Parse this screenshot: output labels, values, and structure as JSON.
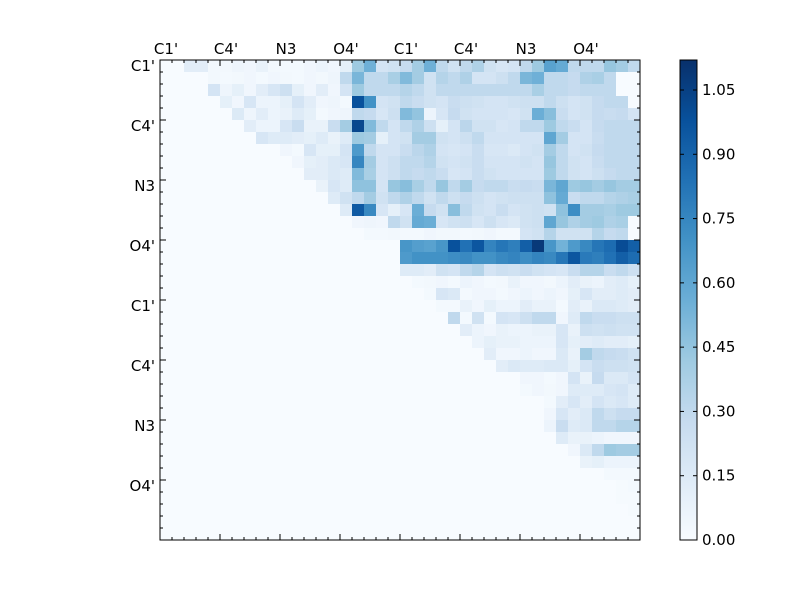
{
  "chart_data": {
    "type": "heatmap",
    "title": "",
    "n": 40,
    "x_tick_labels": [
      "C1'",
      "C4'",
      "N3",
      "O4'",
      "C1'",
      "C4'",
      "N3",
      "O4'"
    ],
    "y_tick_labels": [
      "C1'",
      "C4'",
      "N3",
      "O4'",
      "C1'",
      "C4'",
      "N3",
      "O4'"
    ],
    "label_index_start": 0,
    "label_index_step": 5,
    "value_range": [
      0.0,
      1.12
    ],
    "colormap": "Blues",
    "colorbar_ticks": [
      "0.00",
      "0.15",
      "0.30",
      "0.45",
      "0.60",
      "0.75",
      "0.90",
      "1.05"
    ],
    "matrix_note": "upper-triangular; rows listed as [row, startCol, values...]",
    "rows": [
      [
        0,
        2,
        0.12,
        0.12,
        0.03,
        0.03,
        0.05,
        0.04,
        0.08,
        0.03,
        0.02,
        0.02,
        0.04,
        0.06,
        0.04,
        0.1,
        0.42,
        0.55,
        0.2,
        0.22,
        0.28,
        0.4,
        0.55,
        0.3,
        0.22,
        0.3,
        0.36,
        0.22,
        0.18,
        0.2,
        0.3,
        0.42,
        0.62,
        0.58,
        0.3,
        0.3,
        0.3,
        0.44,
        0.4,
        0.3
      ],
      [
        1,
        4,
        0.03,
        0.02,
        0.03,
        0.04,
        0.02,
        0.04,
        0.03,
        0.02,
        0.04,
        0.03,
        0.05,
        0.3,
        0.52,
        0.3,
        0.3,
        0.38,
        0.5,
        0.4,
        0.22,
        0.34,
        0.3,
        0.36,
        0.2,
        0.2,
        0.24,
        0.3,
        0.52,
        0.55,
        0.3,
        0.3,
        0.28,
        0.36,
        0.38,
        0.3
      ],
      [
        2,
        4,
        0.2,
        0.05,
        0.1,
        0.04,
        0.12,
        0.18,
        0.24,
        0.1,
        0.04,
        0.12,
        0.04,
        0.2,
        0.42,
        0.3,
        0.3,
        0.3,
        0.34,
        0.3,
        0.22,
        0.3,
        0.3,
        0.3,
        0.3,
        0.3,
        0.3,
        0.3,
        0.3,
        0.38,
        0.3,
        0.3,
        0.28,
        0.3,
        0.3,
        0.3
      ],
      [
        3,
        5,
        0.1,
        0.04,
        0.18,
        0.06,
        0.06,
        0.1,
        0.2,
        0.12,
        0.04,
        0.05,
        0.02,
        0.98,
        0.7,
        0.2,
        0.22,
        0.3,
        0.26,
        0.22,
        0.2,
        0.26,
        0.24,
        0.22,
        0.2,
        0.2,
        0.22,
        0.24,
        0.24,
        0.3,
        0.24,
        0.2,
        0.22,
        0.28,
        0.3,
        0.3
      ],
      [
        4,
        6,
        0.15,
        0.05,
        0.12,
        0.06,
        0.08,
        0.14,
        0.1,
        0.02,
        0.04,
        0.05,
        0.3,
        0.28,
        0.18,
        0.24,
        0.5,
        0.45,
        0.06,
        0.18,
        0.28,
        0.22,
        0.2,
        0.2,
        0.2,
        0.18,
        0.22,
        0.56,
        0.48,
        0.26,
        0.2,
        0.22,
        0.28,
        0.26,
        0.28,
        0.2
      ],
      [
        5,
        7,
        0.12,
        0.06,
        0.06,
        0.18,
        0.26,
        0.08,
        0.08,
        0.26,
        0.4,
        1.02,
        0.5,
        0.3,
        0.2,
        0.3,
        0.36,
        0.24,
        0.1,
        0.2,
        0.32,
        0.22,
        0.22,
        0.18,
        0.2,
        0.3,
        0.3,
        0.42,
        0.3,
        0.26,
        0.2,
        0.28,
        0.3,
        0.3,
        0.3
      ],
      [
        6,
        8,
        0.18,
        0.14,
        0.14,
        0.12,
        0.1,
        0.14,
        0.08,
        0.14,
        0.42,
        0.4,
        0.1,
        0.2,
        0.22,
        0.4,
        0.4,
        0.22,
        0.2,
        0.24,
        0.3,
        0.2,
        0.2,
        0.2,
        0.2,
        0.2,
        0.6,
        0.4,
        0.2,
        0.2,
        0.26,
        0.3,
        0.3,
        0.3
      ],
      [
        7,
        10,
        0.04,
        0.02,
        0.18,
        0.1,
        0.1,
        0.2,
        0.66,
        0.3,
        0.2,
        0.2,
        0.26,
        0.32,
        0.36,
        0.2,
        0.18,
        0.2,
        0.26,
        0.18,
        0.18,
        0.16,
        0.2,
        0.22,
        0.4,
        0.3,
        0.2,
        0.22,
        0.28,
        0.3,
        0.3,
        0.3
      ],
      [
        8,
        11,
        0.04,
        0.1,
        0.12,
        0.16,
        0.18,
        0.75,
        0.4,
        0.2,
        0.24,
        0.3,
        0.3,
        0.34,
        0.22,
        0.2,
        0.22,
        0.26,
        0.2,
        0.2,
        0.2,
        0.22,
        0.2,
        0.44,
        0.3,
        0.22,
        0.2,
        0.26,
        0.3,
        0.3,
        0.3
      ],
      [
        9,
        12,
        0.12,
        0.12,
        0.16,
        0.14,
        0.5,
        0.38,
        0.2,
        0.24,
        0.3,
        0.28,
        0.3,
        0.26,
        0.18,
        0.2,
        0.26,
        0.22,
        0.2,
        0.2,
        0.2,
        0.2,
        0.42,
        0.3,
        0.22,
        0.2,
        0.24,
        0.28,
        0.3,
        0.3
      ],
      [
        10,
        13,
        0.08,
        0.18,
        0.14,
        0.46,
        0.46,
        0.2,
        0.44,
        0.48,
        0.38,
        0.3,
        0.44,
        0.3,
        0.4,
        0.28,
        0.3,
        0.3,
        0.26,
        0.28,
        0.26,
        0.52,
        0.6,
        0.42,
        0.44,
        0.4,
        0.44,
        0.4,
        0.4
      ],
      [
        11,
        14,
        0.14,
        0.22,
        0.3,
        0.4,
        0.22,
        0.3,
        0.36,
        0.3,
        0.22,
        0.3,
        0.24,
        0.28,
        0.24,
        0.2,
        0.22,
        0.24,
        0.24,
        0.24,
        0.46,
        0.58,
        0.26,
        0.3,
        0.3,
        0.34,
        0.36,
        0.38
      ],
      [
        12,
        15,
        0.14,
        0.94,
        0.74,
        0.18,
        0.1,
        0.18,
        0.56,
        0.28,
        0.22,
        0.48,
        0.3,
        0.22,
        0.2,
        0.26,
        0.2,
        0.22,
        0.24,
        0.22,
        0.46,
        0.72,
        0.4,
        0.4,
        0.38,
        0.42,
        0.42
      ],
      [
        13,
        16,
        0.04,
        0.05,
        0.04,
        0.3,
        0.22,
        0.58,
        0.56,
        0.18,
        0.22,
        0.24,
        0.18,
        0.24,
        0.18,
        0.16,
        0.22,
        0.24,
        0.6,
        0.44,
        0.36,
        0.4,
        0.42,
        0.36,
        0.38
      ],
      [
        14,
        17,
        0.02,
        0.02,
        0.03,
        0.02,
        0.02,
        0.04,
        0.03,
        0.03,
        0.02,
        0.03,
        0.04,
        0.02,
        0.02,
        0.2,
        0.22,
        0.34,
        0.22,
        0.22,
        0.22,
        0.34,
        0.28,
        0.3
      ],
      [
        15,
        20,
        0.68,
        0.64,
        0.62,
        0.68,
        0.98,
        0.84,
        0.96,
        0.76,
        0.82,
        0.78,
        0.92,
        1.08,
        0.68,
        0.54,
        0.66,
        0.74,
        0.82,
        0.86,
        1.0,
        0.92
      ],
      [
        16,
        20,
        0.66,
        0.7,
        0.7,
        0.7,
        0.72,
        0.74,
        0.7,
        0.7,
        0.74,
        0.76,
        0.72,
        0.76,
        0.74,
        0.82,
        0.96,
        0.8,
        0.78,
        0.84,
        0.92,
        0.86
      ],
      [
        17,
        20,
        0.14,
        0.14,
        0.12,
        0.22,
        0.2,
        0.3,
        0.34,
        0.2,
        0.24,
        0.22,
        0.26,
        0.22,
        0.2,
        0.18,
        0.26,
        0.34,
        0.34,
        0.26,
        0.3,
        0.24
      ],
      [
        18,
        21,
        0.02,
        0.03,
        0.04,
        0.02,
        0.06,
        0.04,
        0.02,
        0.03,
        0.08,
        0.04,
        0.04,
        0.03,
        0.06,
        0.12,
        0.08,
        0.06,
        0.12,
        0.14,
        0.1
      ],
      [
        19,
        22,
        0.02,
        0.18,
        0.16,
        0.02,
        0.04,
        0.04,
        0.02,
        0.04,
        0.06,
        0.04,
        0.06,
        0.04,
        0.1,
        0.18,
        0.12,
        0.12,
        0.14,
        0.12
      ],
      [
        20,
        23,
        0.02,
        0.02,
        0.08,
        0.04,
        0.1,
        0.06,
        0.06,
        0.12,
        0.08,
        0.08,
        0.02,
        0.12,
        0.08,
        0.16,
        0.16,
        0.14,
        0.12
      ],
      [
        21,
        24,
        0.3,
        0.02,
        0.22,
        0.02,
        0.2,
        0.18,
        0.24,
        0.3,
        0.3,
        0.04,
        0.14,
        0.3,
        0.26,
        0.26,
        0.24,
        0.24
      ],
      [
        22,
        25,
        0.12,
        0.06,
        0.04,
        0.08,
        0.06,
        0.06,
        0.08,
        0.08,
        0.18,
        0.08,
        0.24,
        0.22,
        0.24,
        0.22,
        0.22
      ],
      [
        23,
        26,
        0.06,
        0.1,
        0.08,
        0.08,
        0.06,
        0.06,
        0.06,
        0.18,
        0.1,
        0.12,
        0.14,
        0.12,
        0.12,
        0.1
      ],
      [
        24,
        27,
        0.12,
        0.04,
        0.04,
        0.06,
        0.04,
        0.04,
        0.16,
        0.08,
        0.4,
        0.3,
        0.28,
        0.26,
        0.22
      ],
      [
        25,
        28,
        0.12,
        0.16,
        0.14,
        0.14,
        0.16,
        0.16,
        0.1,
        0.2,
        0.26,
        0.24,
        0.24,
        0.22
      ],
      [
        26,
        30,
        0.04,
        0.04,
        0.02,
        0.04,
        0.2,
        0.08,
        0.28,
        0.16,
        0.16,
        0.2
      ],
      [
        27,
        30,
        0.02,
        0.04,
        0.03,
        0.04,
        0.14,
        0.14,
        0.14,
        0.18,
        0.2,
        0.14
      ],
      [
        28,
        32,
        0.02,
        0.12,
        0.18,
        0.12,
        0.2,
        0.16,
        0.18,
        0.14
      ],
      [
        29,
        32,
        0.04,
        0.18,
        0.12,
        0.16,
        0.3,
        0.24,
        0.28,
        0.28
      ],
      [
        30,
        32,
        0.06,
        0.26,
        0.14,
        0.16,
        0.3,
        0.3,
        0.34,
        0.34
      ],
      [
        31,
        33,
        0.14,
        0.08,
        0.08,
        0.06,
        0.04,
        0.04,
        0.04
      ],
      [
        32,
        34,
        0.04,
        0.16,
        0.3,
        0.42,
        0.4,
        0.4
      ],
      [
        33,
        35,
        0.08,
        0.1,
        0.06,
        0.06,
        0.06
      ],
      [
        34,
        37,
        0.02,
        0.02,
        0.02
      ],
      [
        35,
        38,
        0.01,
        0.02
      ],
      [
        36,
        38,
        0.01,
        0.01
      ],
      [
        37,
        39,
        0.01
      ]
    ]
  }
}
